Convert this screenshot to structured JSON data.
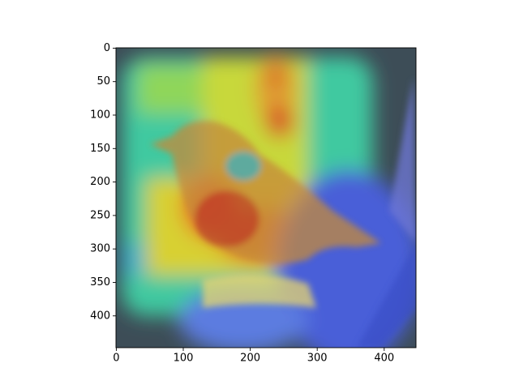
{
  "chart_data": {
    "type": "image",
    "xlim": [
      -0.5,
      447.5
    ],
    "ylim": [
      447.5,
      -0.5
    ],
    "xticks": [
      0,
      100,
      200,
      300,
      400
    ],
    "yticks": [
      0,
      50,
      100,
      150,
      200,
      250,
      300,
      350,
      400
    ]
  }
}
